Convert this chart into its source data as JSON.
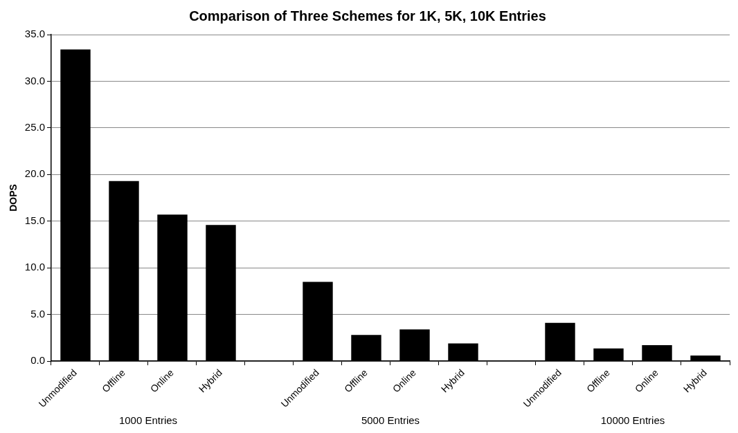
{
  "chart_data": {
    "type": "bar",
    "title": "Comparison of Three Schemes for 1K, 5K, 10K Entries",
    "ylabel": "DOPS",
    "categories": [
      "Unmodified",
      "Offline",
      "Online",
      "Hybrid",
      null,
      "Unmodified",
      "Offline",
      "Online",
      "Hybrid",
      null,
      "Unmodified",
      "Offline",
      "Online",
      "Hybrid"
    ],
    "values": [
      33.4,
      19.3,
      15.7,
      14.6,
      null,
      8.5,
      2.8,
      3.4,
      1.9,
      null,
      4.1,
      1.35,
      1.7,
      0.6
    ],
    "color": "#000000",
    "ylim": [
      0,
      35
    ],
    "yticks": [
      {
        "value": 0,
        "label": "0.0"
      },
      {
        "value": 5,
        "label": "5.0"
      },
      {
        "value": 10,
        "label": "10.0"
      },
      {
        "value": 15,
        "label": "15.0"
      },
      {
        "value": 20,
        "label": "20.0"
      },
      {
        "value": 25,
        "label": "25.0"
      },
      {
        "value": 30,
        "label": "30.0"
      },
      {
        "value": 35,
        "label": "35.0"
      }
    ],
    "grid": "y",
    "annotations": [
      "1000 Entries",
      "5000 Entries",
      "10000 Entries"
    ]
  }
}
